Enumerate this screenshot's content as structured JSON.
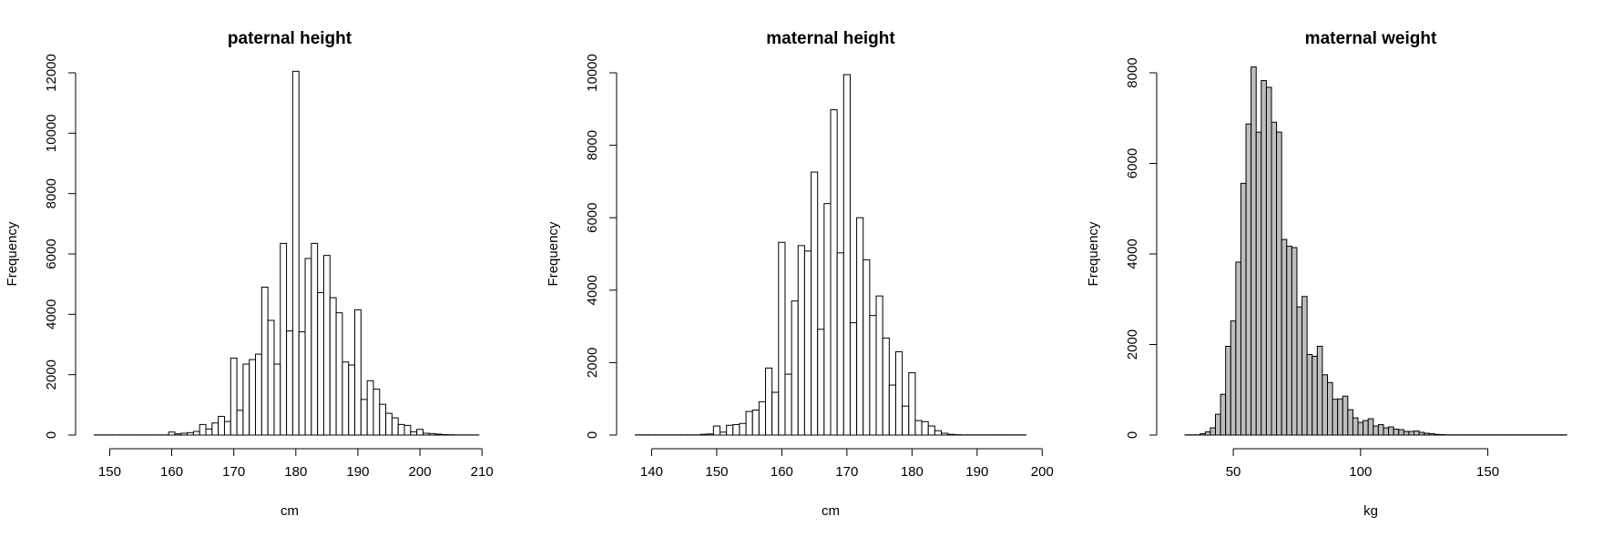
{
  "chart_data": [
    {
      "type": "bar",
      "title": "paternal height",
      "xlabel": "cm",
      "ylabel": "Frequency",
      "xlim": [
        147,
        211
      ],
      "ylim": [
        0,
        12000
      ],
      "x_ticks": [
        150,
        160,
        170,
        180,
        190,
        200,
        210
      ],
      "y_ticks": [
        0,
        2000,
        4000,
        6000,
        8000,
        10000,
        12000
      ],
      "bar_width": 1,
      "fill": "#ffffff",
      "x": [
        148,
        149,
        150,
        151,
        152,
        153,
        154,
        155,
        156,
        157,
        158,
        159,
        160,
        161,
        162,
        163,
        164,
        165,
        166,
        167,
        168,
        169,
        170,
        171,
        172,
        173,
        174,
        175,
        176,
        177,
        178,
        179,
        180,
        181,
        182,
        183,
        184,
        185,
        186,
        187,
        188,
        189,
        190,
        191,
        192,
        193,
        194,
        195,
        196,
        197,
        198,
        199,
        200,
        201,
        202,
        203,
        204,
        205,
        206,
        207,
        208,
        209
      ],
      "values": [
        5,
        5,
        5,
        5,
        5,
        5,
        5,
        5,
        5,
        5,
        5,
        5,
        100,
        40,
        60,
        80,
        120,
        350,
        200,
        400,
        620,
        450,
        2550,
        820,
        2350,
        2500,
        2680,
        4900,
        3800,
        2350,
        6350,
        3450,
        12050,
        3420,
        5850,
        6350,
        4720,
        5950,
        4550,
        4050,
        2420,
        2320,
        4150,
        1180,
        1800,
        1520,
        1020,
        720,
        570,
        350,
        320,
        110,
        190,
        60,
        50,
        30,
        15,
        10,
        5,
        5,
        5,
        5
      ]
    },
    {
      "type": "bar",
      "title": "maternal height",
      "xlabel": "cm",
      "ylabel": "Frequency",
      "xlim": [
        137,
        198
      ],
      "ylim": [
        0,
        10000
      ],
      "x_ticks": [
        140,
        150,
        160,
        170,
        180,
        190,
        200
      ],
      "y_ticks": [
        0,
        2000,
        4000,
        6000,
        8000,
        10000
      ],
      "bar_width": 1,
      "fill": "#ffffff",
      "x": [
        138,
        139,
        140,
        141,
        142,
        143,
        144,
        145,
        146,
        147,
        148,
        149,
        150,
        151,
        152,
        153,
        154,
        155,
        156,
        157,
        158,
        159,
        160,
        161,
        162,
        163,
        164,
        165,
        166,
        167,
        168,
        169,
        170,
        171,
        172,
        173,
        174,
        175,
        176,
        177,
        178,
        179,
        180,
        181,
        182,
        183,
        184,
        185,
        186,
        187,
        188,
        189,
        190,
        191,
        192,
        193,
        194,
        195,
        196,
        197
      ],
      "values": [
        5,
        5,
        5,
        5,
        5,
        5,
        5,
        5,
        5,
        5,
        20,
        30,
        250,
        80,
        270,
        290,
        320,
        650,
        690,
        920,
        1850,
        1180,
        5320,
        1680,
        3700,
        5230,
        5080,
        7260,
        2920,
        6390,
        8980,
        5030,
        9950,
        3100,
        6000,
        4840,
        3300,
        3840,
        2680,
        1380,
        2300,
        800,
        1720,
        400,
        370,
        250,
        120,
        50,
        20,
        10,
        5,
        5,
        5,
        5,
        5,
        5,
        5,
        5,
        5,
        5
      ]
    },
    {
      "type": "bar",
      "title": "maternal weight",
      "xlabel": "kg",
      "ylabel": "Frequency",
      "xlim": [
        26,
        182
      ],
      "ylim": [
        0,
        8000
      ],
      "x_ticks": [
        50,
        100,
        150
      ],
      "y_ticks": [
        0,
        2000,
        4000,
        6000,
        8000
      ],
      "bar_width": 2,
      "fill": "#bebebe",
      "x": [
        32,
        34,
        36,
        38,
        40,
        42,
        44,
        46,
        48,
        50,
        52,
        54,
        56,
        58,
        60,
        62,
        64,
        66,
        68,
        70,
        72,
        74,
        76,
        78,
        80,
        82,
        84,
        86,
        88,
        90,
        92,
        94,
        96,
        98,
        100,
        102,
        104,
        106,
        108,
        110,
        112,
        114,
        116,
        118,
        120,
        122,
        124,
        126,
        128,
        130,
        132,
        134,
        136,
        138,
        140,
        142,
        144,
        146,
        148,
        150,
        152,
        154,
        156,
        158,
        160,
        162,
        164,
        166,
        168,
        170,
        172,
        174,
        176,
        178,
        180
      ],
      "values": [
        5,
        5,
        5,
        30,
        70,
        160,
        460,
        900,
        1960,
        2520,
        3820,
        5560,
        6870,
        8130,
        6690,
        7830,
        7680,
        6910,
        6690,
        4320,
        4170,
        4140,
        2830,
        3060,
        1780,
        1740,
        1960,
        1330,
        1160,
        790,
        800,
        860,
        560,
        380,
        280,
        320,
        360,
        200,
        230,
        160,
        180,
        130,
        120,
        80,
        80,
        90,
        60,
        40,
        30,
        15,
        10,
        5,
        5,
        5,
        5,
        5,
        5,
        5,
        5,
        5,
        5,
        5,
        5,
        5,
        5,
        5,
        5,
        5,
        5,
        5,
        5,
        5,
        5,
        5,
        5
      ]
    }
  ]
}
